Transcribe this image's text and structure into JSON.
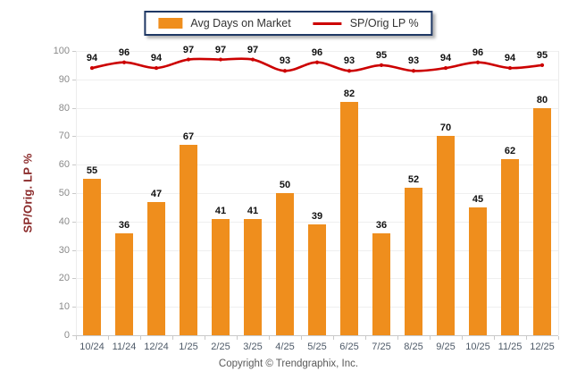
{
  "legend": {
    "bar_label": "Avg Days on Market",
    "line_label": "SP/Orig LP %"
  },
  "footer": {
    "copyright": "Copyright © Trendgraphix, Inc."
  },
  "colors": {
    "bar": "#EF8E1D",
    "line": "#CC0000",
    "legend_border": "#1F3864",
    "axis_title_text": "#8B2B2B",
    "y_tick_text": "#8A8A8A",
    "x_tick_text": "#4E5A68",
    "value_label_text": "#111111",
    "gridline": "#EFEFEF"
  },
  "chart_data": {
    "type": "bar",
    "subtype": "bar+line combo",
    "categories": [
      "10/24",
      "11/24",
      "12/24",
      "1/25",
      "2/25",
      "3/25",
      "4/25",
      "5/25",
      "6/25",
      "7/25",
      "8/25",
      "9/25",
      "10/25",
      "11/25",
      "12/25"
    ],
    "series": [
      {
        "name": "Avg Days on Market",
        "type": "bar",
        "color": "#EF8E1D",
        "values": [
          55,
          36,
          47,
          67,
          41,
          41,
          50,
          39,
          82,
          36,
          52,
          70,
          45,
          62,
          80
        ]
      },
      {
        "name": "SP/Orig LP %",
        "type": "line",
        "color": "#CC0000",
        "values": [
          94,
          96,
          94,
          97,
          97,
          97,
          93,
          96,
          93,
          95,
          93,
          94,
          96,
          94,
          95
        ]
      }
    ],
    "title": "",
    "xlabel": "",
    "ylabel": "SP/Orig. LP %",
    "ylim": [
      0,
      100
    ],
    "ytick_step": 10,
    "grid": true,
    "legend_position": "top",
    "data_labels": true
  }
}
